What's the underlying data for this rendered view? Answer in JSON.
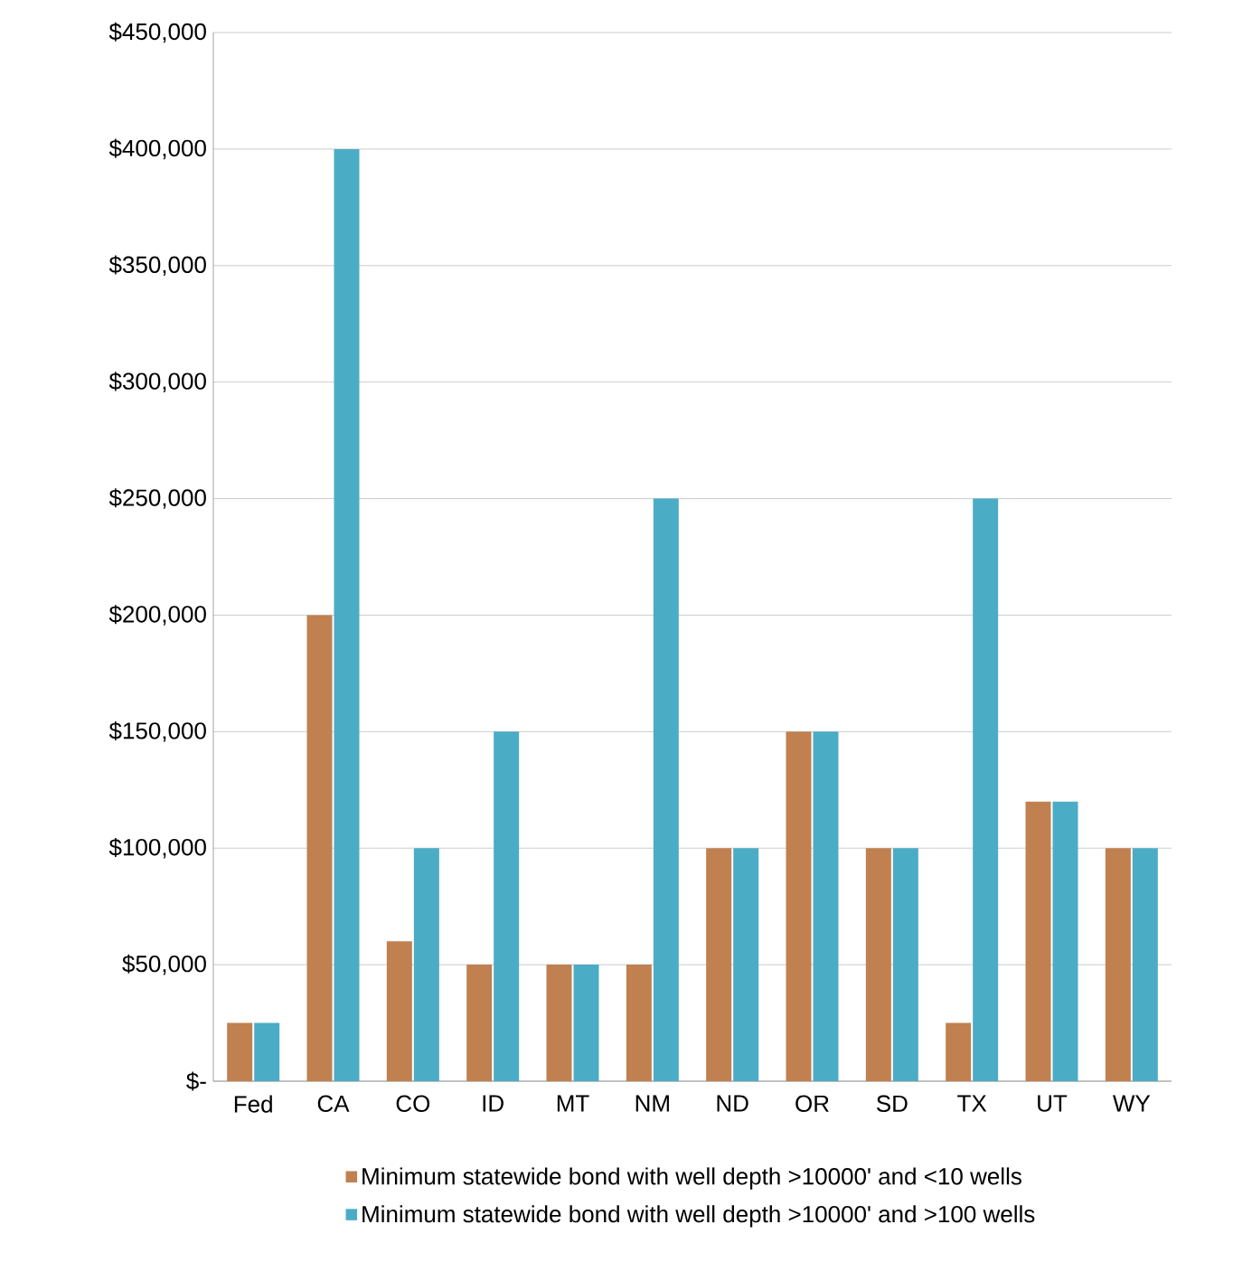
{
  "chart_data": {
    "type": "bar",
    "categories": [
      "Fed",
      "CA",
      "CO",
      "ID",
      "MT",
      "NM",
      "ND",
      "OR",
      "SD",
      "TX",
      "UT",
      "WY"
    ],
    "series": [
      {
        "name": "Minimum statewide bond with well depth >10000' and <10 wells",
        "color": "#c0804f",
        "values": [
          25000,
          200000,
          60000,
          50000,
          50000,
          50000,
          100000,
          150000,
          100000,
          25000,
          120000,
          100000
        ]
      },
      {
        "name": "Minimum statewide bond with well depth >10000' and >100 wells",
        "color": "#4bacc6",
        "values": [
          25000,
          400000,
          100000,
          150000,
          50000,
          250000,
          100000,
          150000,
          100000,
          250000,
          120000,
          100000
        ]
      }
    ],
    "ylim": [
      0,
      450000
    ],
    "yticks": [
      {
        "value": 0,
        "label": "$-"
      },
      {
        "value": 50000,
        "label": "$50,000"
      },
      {
        "value": 100000,
        "label": "$100,000"
      },
      {
        "value": 150000,
        "label": "$150,000"
      },
      {
        "value": 200000,
        "label": "$200,000"
      },
      {
        "value": 250000,
        "label": "$250,000"
      },
      {
        "value": 300000,
        "label": "$300,000"
      },
      {
        "value": 350000,
        "label": "$350,000"
      },
      {
        "value": 400000,
        "label": "$400,000"
      },
      {
        "value": 450000,
        "label": "$450,000"
      }
    ],
    "grid": "y",
    "legend": "bottom"
  }
}
